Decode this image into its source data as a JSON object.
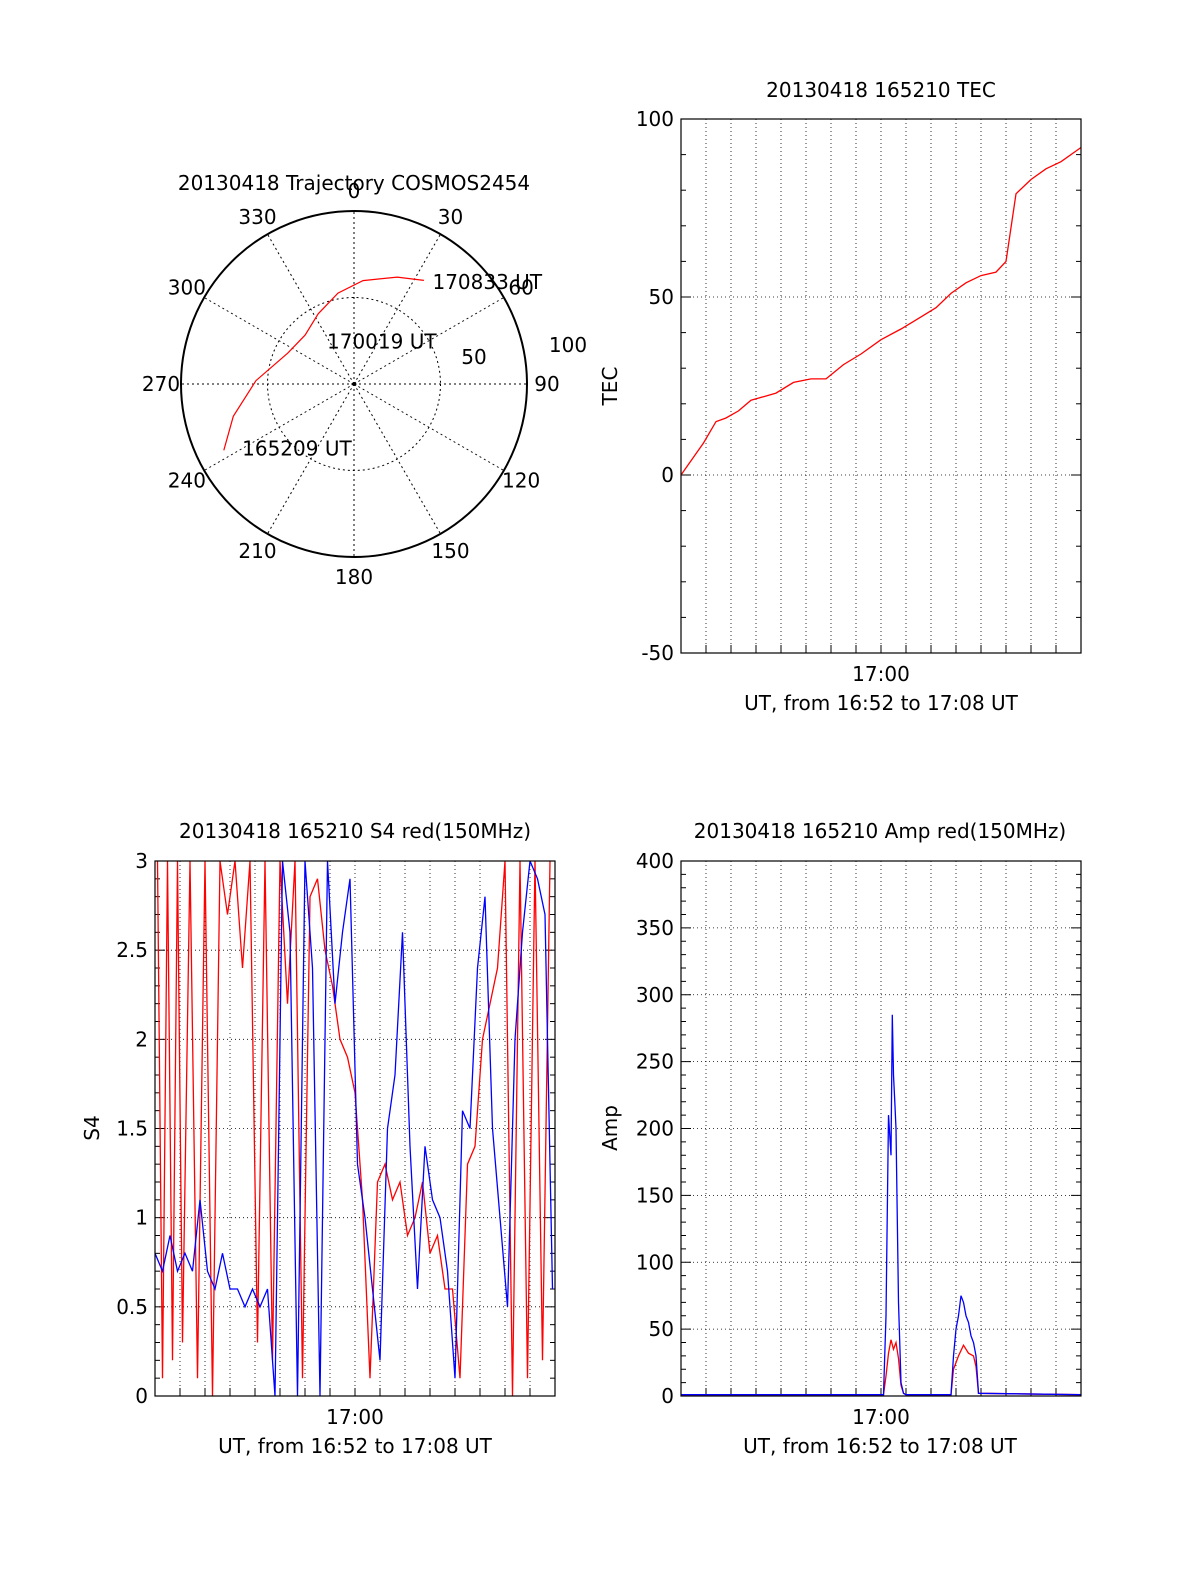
{
  "chart_data": [
    {
      "type": "polar",
      "title": "20130418 Trajectory COSMOS2454",
      "azimuth_labels": [
        "0",
        "30",
        "60",
        "90",
        "120",
        "150",
        "180",
        "210",
        "240",
        "270",
        "300",
        "330"
      ],
      "radial_labels": [
        "50",
        "100"
      ],
      "elevation_range": [
        0,
        90
      ],
      "series": [
        {
          "color": "#ff0000",
          "points": [
            {
              "az": 243,
              "el": 14
            },
            {
              "az": 255,
              "el": 25
            },
            {
              "az": 272,
              "el": 39
            },
            {
              "az": 295,
              "el": 52
            },
            {
              "az": 315,
              "el": 54
            },
            {
              "az": 333,
              "el": 49
            },
            {
              "az": 350,
              "el": 42
            },
            {
              "az": 5,
              "el": 36
            },
            {
              "az": 22,
              "el": 30
            },
            {
              "az": 34,
              "el": 25
            }
          ]
        }
      ],
      "annotations": [
        {
          "text": "170833 UT",
          "az": 38,
          "el": 22
        },
        {
          "text": "170019 UT",
          "az": 330,
          "el": 64
        },
        {
          "text": "165209 UT",
          "az": 240,
          "el": 24
        }
      ]
    },
    {
      "type": "line",
      "title": "20130418 165210 TEC",
      "xlabel": "UT, from 16:52 to 17:08 UT",
      "ylabel": "TEC",
      "xlim": [
        0,
        16
      ],
      "xtick_labels": [
        {
          "x": 8,
          "label": "17:00"
        }
      ],
      "ylim": [
        -50,
        100
      ],
      "yticks": [
        -50,
        0,
        50,
        100
      ],
      "grid": true,
      "series": [
        {
          "color": "#ff0000",
          "x": [
            0,
            0.4,
            0.9,
            1.4,
            1.8,
            2.3,
            2.8,
            3.3,
            3.8,
            4.5,
            5.2,
            5.8,
            6.5,
            7.2,
            8.0,
            8.8,
            9.5,
            10.2,
            10.8,
            11.4,
            12.0,
            12.6,
            13.0,
            13.4,
            14.0,
            14.6,
            15.2,
            16.0
          ],
          "values": [
            0,
            4,
            9,
            15,
            16,
            18,
            21,
            22,
            23,
            26,
            27,
            27,
            31,
            34,
            38,
            41,
            44,
            47,
            51,
            54,
            56,
            57,
            60,
            79,
            83,
            86,
            88,
            92
          ]
        }
      ]
    },
    {
      "type": "line",
      "title": "20130418 165210 S4 red(150MHz)",
      "xlabel": "UT, from 16:52 to 17:08 UT",
      "ylabel": "S4",
      "xlim": [
        0,
        16
      ],
      "xtick_labels": [
        {
          "x": 8,
          "label": "17:00"
        }
      ],
      "ylim": [
        0,
        3
      ],
      "yticks": [
        0,
        0.5,
        1,
        1.5,
        2,
        2.5,
        3
      ],
      "ytick_labels": [
        "0",
        "0.5",
        "1",
        "1.5",
        "2",
        "2.5",
        "3"
      ],
      "grid": true,
      "series": [
        {
          "color": "#ff0000",
          "x": [
            0.1,
            0.3,
            0.5,
            0.7,
            0.9,
            1.1,
            1.4,
            1.7,
            2.0,
            2.3,
            2.6,
            2.9,
            3.2,
            3.5,
            3.8,
            4.1,
            4.4,
            4.7,
            5.0,
            5.3,
            5.6,
            5.9,
            6.2,
            6.5,
            6.8,
            7.1,
            7.4,
            7.7,
            8.0,
            8.3,
            8.6,
            8.9,
            9.2,
            9.5,
            9.8,
            10.1,
            10.4,
            10.7,
            11.0,
            11.3,
            11.6,
            11.9,
            12.2,
            12.5,
            12.8,
            13.1,
            13.4,
            13.7,
            14.0,
            14.3,
            14.6,
            14.9,
            15.2,
            15.5,
            15.8
          ],
          "values": [
            3.0,
            0.1,
            3.0,
            0.2,
            3.0,
            0.3,
            3.0,
            0.1,
            3.0,
            0.0,
            3.0,
            2.7,
            3.0,
            2.4,
            3.0,
            0.3,
            3.0,
            0.2,
            3.0,
            2.2,
            3.0,
            0.1,
            2.8,
            2.9,
            2.5,
            2.3,
            2.0,
            1.9,
            1.7,
            1.1,
            0.1,
            1.2,
            1.3,
            1.1,
            1.2,
            0.9,
            1.0,
            1.2,
            0.8,
            0.9,
            0.6,
            0.6,
            0.1,
            1.3,
            1.4,
            2.0,
            2.2,
            2.4,
            3.0,
            0.0,
            3.0,
            0.1,
            3.0,
            0.2,
            3.0
          ]
        },
        {
          "color": "#0000ff",
          "x": [
            0.0,
            0.3,
            0.6,
            0.9,
            1.2,
            1.5,
            1.8,
            2.1,
            2.4,
            2.7,
            3.0,
            3.3,
            3.6,
            3.9,
            4.2,
            4.5,
            4.8,
            5.1,
            5.4,
            5.7,
            6.0,
            6.3,
            6.6,
            6.9,
            7.2,
            7.5,
            7.8,
            8.1,
            8.4,
            8.7,
            9.0,
            9.3,
            9.6,
            9.9,
            10.2,
            10.5,
            10.8,
            11.1,
            11.4,
            11.7,
            12.0,
            12.3,
            12.6,
            12.9,
            13.2,
            13.5,
            13.8,
            14.1,
            14.4,
            14.7,
            15.0,
            15.3,
            15.6,
            15.9
          ],
          "values": [
            0.8,
            0.7,
            0.9,
            0.7,
            0.8,
            0.7,
            1.1,
            0.7,
            0.6,
            0.8,
            0.6,
            0.6,
            0.5,
            0.6,
            0.5,
            0.6,
            0.0,
            3.0,
            2.6,
            0.0,
            3.0,
            2.4,
            0.0,
            3.0,
            2.2,
            2.6,
            2.9,
            1.3,
            1.0,
            0.6,
            0.2,
            1.5,
            1.8,
            2.6,
            1.4,
            0.6,
            1.4,
            1.1,
            1.0,
            0.7,
            0.1,
            1.6,
            1.5,
            2.4,
            2.8,
            1.5,
            1.0,
            0.5,
            2.0,
            2.6,
            3.0,
            2.9,
            2.7,
            0.6
          ]
        }
      ]
    },
    {
      "type": "line",
      "title": "20130418 165210 Amp red(150MHz)",
      "xlabel": "UT, from 16:52 to 17:08 UT",
      "ylabel": "Amp",
      "xlim": [
        0,
        16
      ],
      "xtick_labels": [
        {
          "x": 8,
          "label": "17:00"
        }
      ],
      "ylim": [
        0,
        400
      ],
      "yticks": [
        0,
        50,
        100,
        150,
        200,
        250,
        300,
        350,
        400
      ],
      "grid": true,
      "series": [
        {
          "color": "#ff0000",
          "x": [
            0,
            8.1,
            8.2,
            8.3,
            8.4,
            8.5,
            8.6,
            8.7,
            8.8,
            8.9,
            9.0,
            10.8,
            10.9,
            11.1,
            11.3,
            11.5,
            11.7,
            11.8,
            11.9,
            16
          ],
          "values": [
            1,
            1,
            15,
            32,
            42,
            35,
            40,
            28,
            8,
            2,
            1,
            1,
            20,
            30,
            38,
            32,
            30,
            22,
            2,
            1
          ]
        },
        {
          "color": "#0000ff",
          "x": [
            0,
            8.1,
            8.2,
            8.3,
            8.4,
            8.45,
            8.5,
            8.55,
            8.6,
            8.7,
            8.8,
            8.9,
            9.0,
            10.8,
            10.9,
            11.0,
            11.1,
            11.2,
            11.3,
            11.4,
            11.5,
            11.6,
            11.7,
            11.8,
            11.9,
            16
          ],
          "values": [
            1,
            1,
            60,
            210,
            180,
            285,
            240,
            220,
            200,
            70,
            10,
            2,
            1,
            1,
            30,
            50,
            60,
            75,
            70,
            60,
            55,
            45,
            40,
            30,
            2,
            1
          ]
        }
      ]
    }
  ]
}
